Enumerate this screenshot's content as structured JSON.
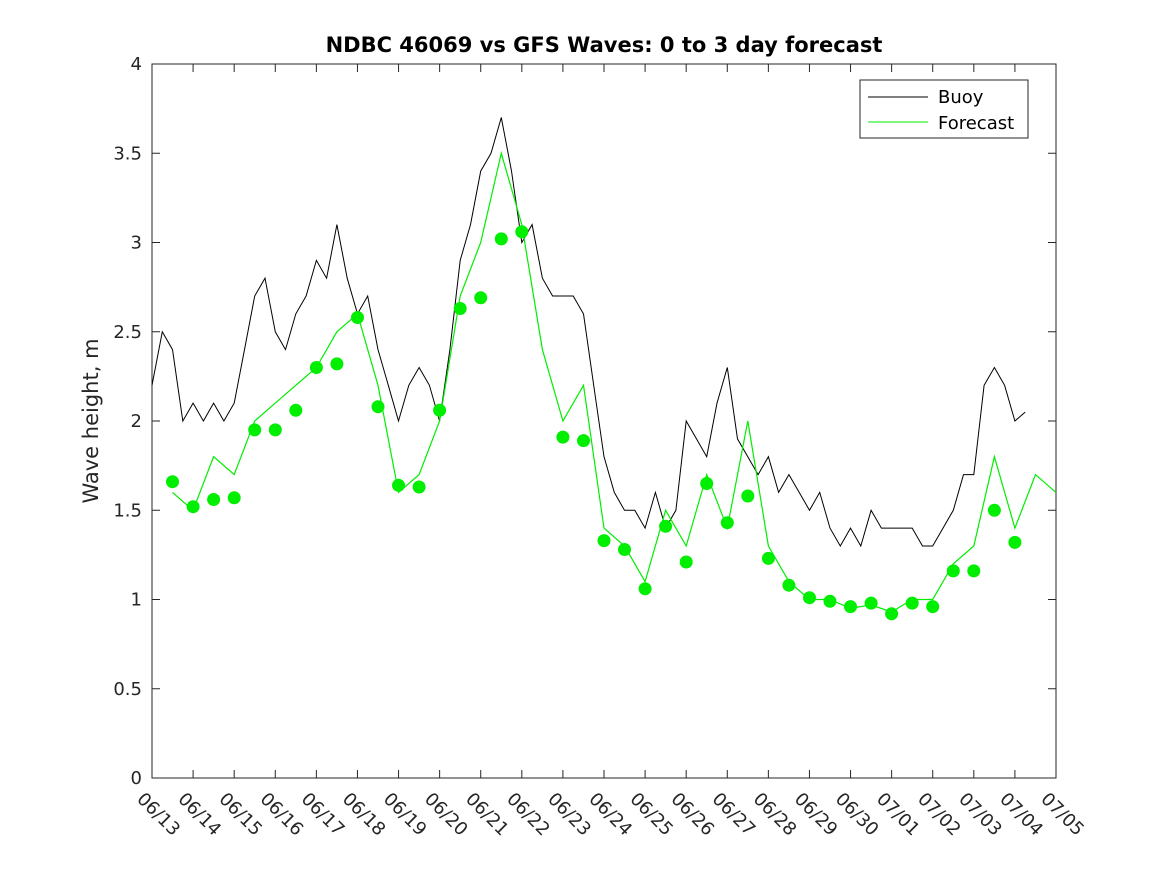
{
  "chart_data": {
    "type": "line",
    "title": "NDBC 46069 vs GFS Waves: 0 to 3 day forecast",
    "ylabel": "Wave height, m",
    "xlabel": "",
    "x_start": "06/13",
    "x_end": "07/05",
    "x_ticks": [
      "06/13",
      "06/14",
      "06/15",
      "06/16",
      "06/17",
      "06/18",
      "06/19",
      "06/20",
      "06/21",
      "06/22",
      "06/23",
      "06/24",
      "06/25",
      "06/26",
      "06/27",
      "06/28",
      "06/29",
      "06/30",
      "07/01",
      "07/02",
      "07/03",
      "07/04",
      "07/05"
    ],
    "ylim": [
      0,
      4
    ],
    "y_ticks": [
      "0",
      "0.5",
      "1",
      "1.5",
      "2",
      "2.5",
      "3",
      "3.5",
      "4"
    ],
    "grid": false,
    "legend_position": "top-right",
    "legend": [
      "Buoy",
      "Forecast"
    ],
    "colors": {
      "buoy": "#000000",
      "forecast": "#00ee00"
    },
    "buoy": {
      "x": [
        "06/13 00:00",
        "06/13 06:00",
        "06/13 12:00",
        "06/13 18:00",
        "06/14 00:00",
        "06/14 06:00",
        "06/14 12:00",
        "06/14 18:00",
        "06/15 00:00",
        "06/15 06:00",
        "06/15 12:00",
        "06/15 18:00",
        "06/16 00:00",
        "06/16 06:00",
        "06/16 12:00",
        "06/16 18:00",
        "06/17 00:00",
        "06/17 06:00",
        "06/17 12:00",
        "06/17 18:00",
        "06/18 00:00",
        "06/18 06:00",
        "06/18 12:00",
        "06/18 18:00",
        "06/19 00:00",
        "06/19 06:00",
        "06/19 12:00",
        "06/19 18:00",
        "06/20 00:00",
        "06/20 06:00",
        "06/20 12:00",
        "06/20 18:00",
        "06/21 00:00",
        "06/21 06:00",
        "06/21 12:00",
        "06/21 18:00",
        "06/22 00:00",
        "06/22 06:00",
        "06/22 12:00",
        "06/22 18:00",
        "06/23 00:00",
        "06/23 06:00",
        "06/23 12:00",
        "06/23 18:00",
        "06/24 00:00",
        "06/24 06:00",
        "06/24 12:00",
        "06/24 18:00",
        "06/25 00:00",
        "06/25 06:00",
        "06/25 12:00",
        "06/25 18:00",
        "06/26 00:00",
        "06/26 06:00",
        "06/26 12:00",
        "06/26 18:00",
        "06/27 00:00",
        "06/27 06:00",
        "06/27 12:00",
        "06/27 18:00",
        "06/28 00:00",
        "06/28 06:00",
        "06/28 12:00",
        "06/28 18:00",
        "06/29 00:00",
        "06/29 06:00",
        "06/29 12:00",
        "06/29 18:00",
        "06/30 00:00",
        "06/30 06:00",
        "06/30 12:00",
        "06/30 18:00",
        "07/01 00:00",
        "07/01 06:00",
        "07/01 12:00",
        "07/01 18:00",
        "07/02 00:00",
        "07/02 06:00",
        "07/02 12:00",
        "07/02 18:00",
        "07/03 00:00",
        "07/03 06:00",
        "07/03 12:00",
        "07/03 18:00",
        "07/04 00:00",
        "07/04 06:00"
      ],
      "y": [
        2.2,
        2.5,
        2.4,
        2.0,
        2.1,
        2.0,
        2.1,
        2.0,
        2.1,
        2.4,
        2.7,
        2.8,
        2.5,
        2.4,
        2.6,
        2.7,
        2.9,
        2.8,
        3.1,
        2.8,
        2.6,
        2.7,
        2.4,
        2.2,
        2.0,
        2.2,
        2.3,
        2.2,
        2.0,
        2.4,
        2.9,
        3.1,
        3.4,
        3.5,
        3.7,
        3.4,
        3.0,
        3.1,
        2.8,
        2.7,
        2.7,
        2.7,
        2.6,
        2.2,
        1.8,
        1.6,
        1.5,
        1.5,
        1.4,
        1.6,
        1.4,
        1.5,
        2.0,
        1.9,
        1.8,
        2.1,
        2.3,
        1.9,
        1.8,
        1.7,
        1.8,
        1.6,
        1.7,
        1.6,
        1.5,
        1.6,
        1.4,
        1.3,
        1.4,
        1.3,
        1.5,
        1.4,
        1.4,
        1.4,
        1.4,
        1.3,
        1.3,
        1.4,
        1.5,
        1.7,
        1.7,
        2.2,
        2.3,
        2.2,
        2.0,
        2.05
      ]
    },
    "forecast": {
      "x": [
        "06/13 12:00",
        "06/14 00:00",
        "06/14 12:00",
        "06/15 00:00",
        "06/15 12:00",
        "06/16 00:00",
        "06/16 12:00",
        "06/17 00:00",
        "06/17 12:00",
        "06/18 00:00",
        "06/18 12:00",
        "06/19 00:00",
        "06/19 12:00",
        "06/20 00:00",
        "06/20 12:00",
        "06/21 00:00",
        "06/21 12:00",
        "06/22 00:00",
        "06/22 12:00",
        "06/23 00:00",
        "06/23 12:00",
        "06/24 00:00",
        "06/24 12:00",
        "06/25 00:00",
        "06/25 12:00",
        "06/26 00:00",
        "06/26 12:00",
        "06/27 00:00",
        "06/27 12:00",
        "06/28 00:00",
        "06/28 12:00",
        "06/29 00:00",
        "06/29 12:00",
        "06/30 00:00",
        "06/30 12:00",
        "07/01 00:00",
        "07/01 12:00",
        "07/02 00:00",
        "07/02 12:00",
        "07/03 00:00",
        "07/03 12:00",
        "07/04 00:00",
        "07/04 12:00",
        "07/05 00:00"
      ],
      "y": [
        1.6,
        1.5,
        1.8,
        1.7,
        2.0,
        2.1,
        2.2,
        2.3,
        2.5,
        2.6,
        2.2,
        1.6,
        1.7,
        2.0,
        2.7,
        3.0,
        3.5,
        3.1,
        2.4,
        2.0,
        2.2,
        1.4,
        1.3,
        1.1,
        1.5,
        1.3,
        1.7,
        1.4,
        2.0,
        1.3,
        1.1,
        1.0,
        1.0,
        0.95,
        0.97,
        0.93,
        1.0,
        1.0,
        1.2,
        1.3,
        1.8,
        1.4,
        1.7,
        1.6
      ]
    },
    "forecast_markers": {
      "x": [
        "06/13 12:00",
        "06/14 00:00",
        "06/14 12:00",
        "06/15 00:00",
        "06/15 12:00",
        "06/16 00:00",
        "06/16 12:00",
        "06/17 00:00",
        "06/17 12:00",
        "06/18 00:00",
        "06/18 12:00",
        "06/19 00:00",
        "06/19 12:00",
        "06/20 00:00",
        "06/20 12:00",
        "06/21 00:00",
        "06/21 12:00",
        "06/22 00:00",
        "06/23 00:00",
        "06/23 12:00",
        "06/24 00:00",
        "06/24 12:00",
        "06/25 00:00",
        "06/25 12:00",
        "06/26 00:00",
        "06/26 12:00",
        "06/27 00:00",
        "06/27 12:00",
        "06/28 00:00",
        "06/28 12:00",
        "06/29 00:00",
        "06/29 12:00",
        "06/30 00:00",
        "06/30 12:00",
        "07/01 00:00",
        "07/01 12:00",
        "07/02 00:00",
        "07/02 12:00",
        "07/03 00:00",
        "07/03 12:00",
        "07/04 00:00"
      ],
      "y": [
        1.66,
        1.52,
        1.56,
        1.57,
        1.95,
        1.95,
        2.06,
        2.3,
        2.32,
        2.58,
        2.08,
        1.64,
        1.63,
        2.06,
        2.63,
        2.69,
        3.02,
        3.06,
        1.91,
        1.89,
        1.33,
        1.28,
        1.06,
        1.41,
        1.21,
        1.65,
        1.43,
        1.58,
        1.23,
        1.08,
        1.01,
        0.99,
        0.96,
        0.98,
        0.92,
        0.98,
        0.96,
        1.16,
        1.16,
        1.5,
        1.32
      ]
    }
  }
}
